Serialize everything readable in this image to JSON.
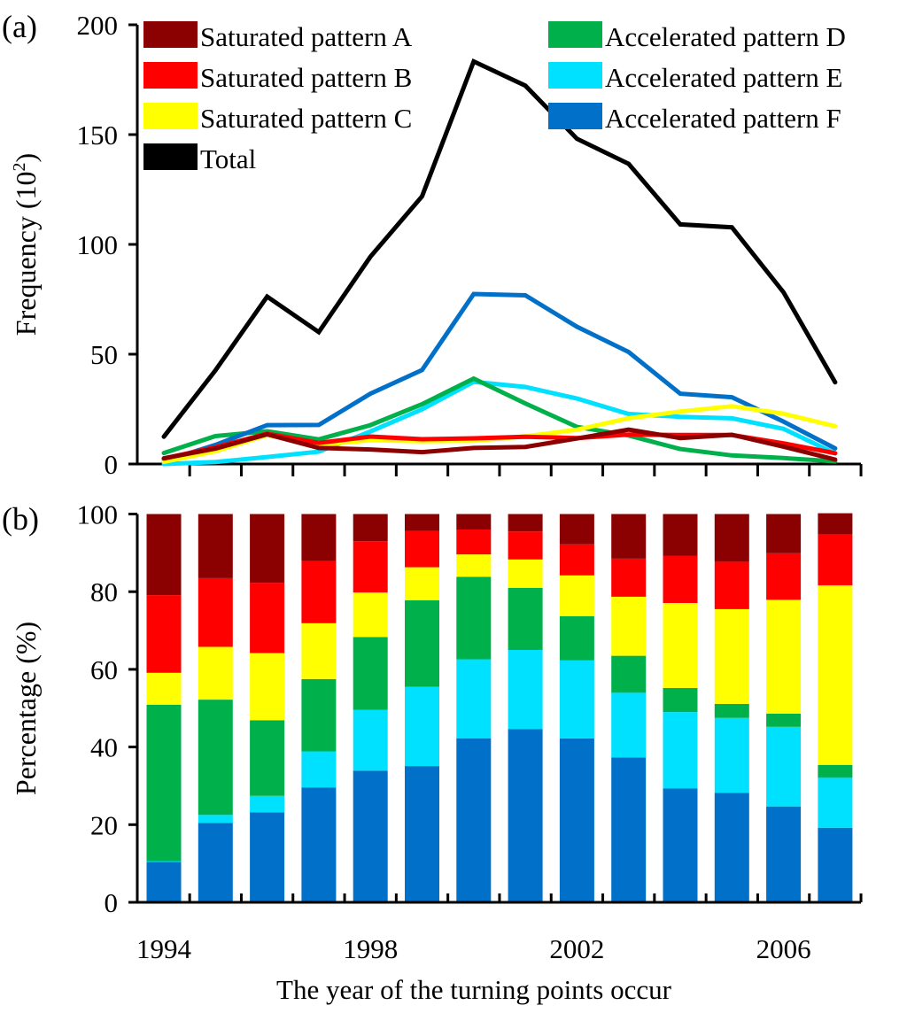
{
  "chart_data": [
    {
      "panel_label": "(a)",
      "type": "line",
      "title": "",
      "xlabel": "",
      "ylabel": "Frequency (10",
      "ylabel_superscript": "2",
      "ylabel_suffix": ")",
      "ylim": [
        0,
        200
      ],
      "yticks": [
        0,
        50,
        100,
        150,
        200
      ],
      "x": [
        1994,
        1995,
        1996,
        1997,
        1998,
        1999,
        2000,
        2001,
        2002,
        2003,
        2004,
        2005,
        2006,
        2007
      ],
      "grid": false,
      "legend_position": "top",
      "series": [
        {
          "key": "A",
          "name": "Saturated pattern A",
          "color": "#8b0000",
          "values": [
            2.6,
            7.0,
            13.5,
            7.3,
            6.6,
            5.4,
            7.3,
            7.8,
            11.6,
            15.7,
            11.8,
            13.3,
            7.9,
            2.0
          ]
        },
        {
          "key": "B",
          "name": "Saturated pattern B",
          "color": "#ff0000",
          "values": [
            2.5,
            7.6,
            13.8,
            9.6,
            12.5,
            11.3,
            11.7,
            12.4,
            11.8,
            13.4,
            13.2,
            13.2,
            9.4,
            4.9
          ]
        },
        {
          "key": "C",
          "name": "Saturated pattern C",
          "color": "#ffff00",
          "values": [
            1.0,
            5.8,
            13.2,
            8.7,
            10.9,
            10.4,
            10.6,
            12.6,
            15.6,
            20.8,
            23.9,
            26.3,
            22.9,
            17.2
          ]
        },
        {
          "key": "Total",
          "name": "Total",
          "color": "#000000",
          "values": [
            12.4,
            42.7,
            76.2,
            60.1,
            94.4,
            121.9,
            183.3,
            172.3,
            148.1,
            136.7,
            109.1,
            107.8,
            78.2,
            37.2
          ]
        },
        {
          "key": "D",
          "name": "Accelerated pattern D",
          "color": "#00b04a",
          "values": [
            5.0,
            12.7,
            14.9,
            11.2,
            17.7,
            27.2,
            38.9,
            27.6,
            16.9,
            13.0,
            6.8,
            3.9,
            2.7,
            1.2
          ]
        },
        {
          "key": "E",
          "name": "Accelerated pattern E",
          "color": "#00e0ff",
          "values": [
            0.0,
            0.9,
            3.2,
            5.6,
            14.8,
            24.9,
            37.4,
            35.1,
            29.8,
            22.8,
            21.5,
            20.8,
            16.0,
            4.8
          ]
        },
        {
          "key": "F",
          "name": "Accelerated pattern F",
          "color": "#0070c8",
          "values": [
            1.3,
            8.7,
            17.7,
            17.8,
            32.0,
            42.8,
            77.4,
            76.8,
            62.5,
            51.0,
            32.0,
            30.4,
            19.3,
            7.1
          ]
        }
      ]
    },
    {
      "panel_label": "(b)",
      "type": "bar",
      "stacked": true,
      "title": "",
      "xlabel": "The year of the turning points occur",
      "ylabel": "Percentage (%)",
      "ylim": [
        0,
        100
      ],
      "yticks": [
        0,
        20,
        40,
        60,
        80,
        100
      ],
      "categories": [
        1994,
        1995,
        1996,
        1997,
        1998,
        1999,
        2000,
        2001,
        2002,
        2003,
        2004,
        2005,
        2006,
        2007
      ],
      "xtick_labels": [
        "1994",
        "1998",
        "2002",
        "2006"
      ],
      "grid": false,
      "series": [
        {
          "key": "F",
          "name": "Accelerated pattern F",
          "color": "#0070c8",
          "values": [
            10.4,
            20.4,
            23.2,
            29.6,
            33.9,
            35.1,
            42.2,
            44.6,
            42.2,
            37.3,
            29.3,
            28.2,
            24.7,
            19.2
          ]
        },
        {
          "key": "E",
          "name": "Accelerated pattern E",
          "color": "#00e0ff",
          "values": [
            0.2,
            2.1,
            4.2,
            9.3,
            15.7,
            20.4,
            20.4,
            20.4,
            20.1,
            16.7,
            19.7,
            19.3,
            20.5,
            12.9
          ]
        },
        {
          "key": "D",
          "name": "Accelerated pattern D",
          "color": "#00b04a",
          "values": [
            40.3,
            29.7,
            19.5,
            18.6,
            18.7,
            22.3,
            21.2,
            16.0,
            11.4,
            9.5,
            6.2,
            3.6,
            3.4,
            3.3
          ]
        },
        {
          "key": "C",
          "name": "Saturated pattern C",
          "color": "#ffff00",
          "values": [
            8.2,
            13.6,
            17.3,
            14.4,
            11.5,
            8.5,
            5.8,
            7.3,
            10.5,
            15.2,
            21.9,
            24.4,
            29.3,
            46.2
          ]
        },
        {
          "key": "B",
          "name": "Saturated pattern B",
          "color": "#ff0000",
          "values": [
            20.0,
            17.7,
            18.1,
            16.0,
            13.2,
            9.3,
            6.4,
            7.2,
            8.0,
            9.8,
            12.1,
            12.2,
            12.0,
            13.1
          ]
        },
        {
          "key": "A",
          "name": "Saturated pattern A",
          "color": "#8b0000",
          "values": [
            20.9,
            16.5,
            17.7,
            12.1,
            7.0,
            4.4,
            4.0,
            4.5,
            7.8,
            11.5,
            10.8,
            12.3,
            10.1,
            5.5
          ]
        }
      ]
    }
  ]
}
